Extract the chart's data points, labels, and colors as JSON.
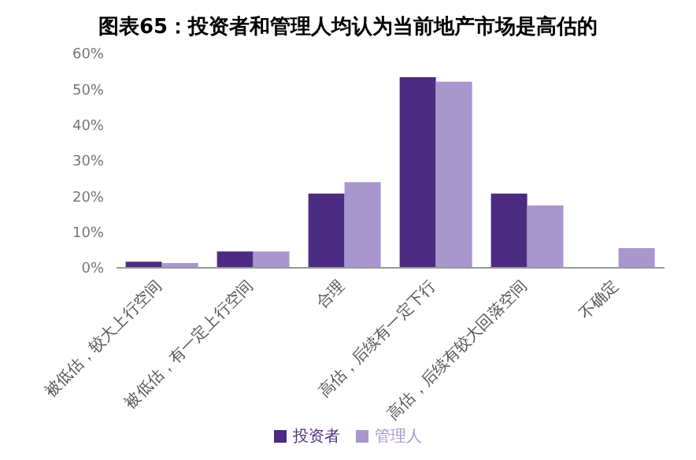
{
  "chart_data": {
    "type": "bar",
    "title": "图表65：投资者和管理人均认为当前地产市场是高估的",
    "categories": [
      "被低估，较大上行空间",
      "被低估，有一定上行空间",
      "合理",
      "高估，后续有一定下行",
      "高估，后续有较大回落空间",
      "不确定"
    ],
    "series": [
      {
        "name": "投资者",
        "color": "#4b2c82",
        "values": [
          1.7,
          4.6,
          20.8,
          53.4,
          20.8,
          0
        ]
      },
      {
        "name": "管理人",
        "color": "#a797cd",
        "values": [
          1.3,
          4.6,
          24,
          52.1,
          17.5,
          5.5
        ]
      }
    ],
    "ylim": [
      0,
      60
    ],
    "yticks": [
      {
        "value": 0,
        "label": "0%"
      },
      {
        "value": 10,
        "label": "10%"
      },
      {
        "value": 20,
        "label": "20%"
      },
      {
        "value": 30,
        "label": "30%"
      },
      {
        "value": 40,
        "label": "40%"
      },
      {
        "value": 50,
        "label": "50%"
      },
      {
        "value": 60,
        "label": "60%"
      }
    ],
    "grid": false,
    "legend": "bottom"
  }
}
